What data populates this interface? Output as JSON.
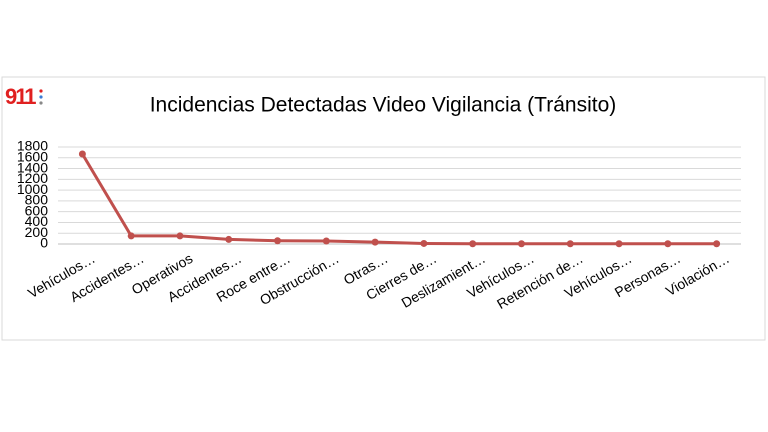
{
  "logo": "911",
  "chart_data": {
    "type": "line",
    "title": "Incidencias Detectadas Video Vigilancia (Tránsito)",
    "categories": [
      "Vehículos…",
      "Accidentes…",
      "Operativos",
      "Accidentes…",
      "Roce entre…",
      "Obstrucción…",
      "Otras…",
      "Cierres de…",
      "Deslizamient…",
      "Vehículos…",
      "Retención de…",
      "Vehículos…",
      "Personas…",
      "Violación…"
    ],
    "values": [
      1670,
      150,
      150,
      85,
      60,
      55,
      35,
      10,
      5,
      5,
      5,
      5,
      5,
      5
    ],
    "color": "#c0504d",
    "ylim": [
      0,
      1800
    ],
    "yticks": [
      0,
      200,
      400,
      600,
      800,
      1000,
      1200,
      1400,
      1600,
      1800
    ],
    "grid": true
  }
}
